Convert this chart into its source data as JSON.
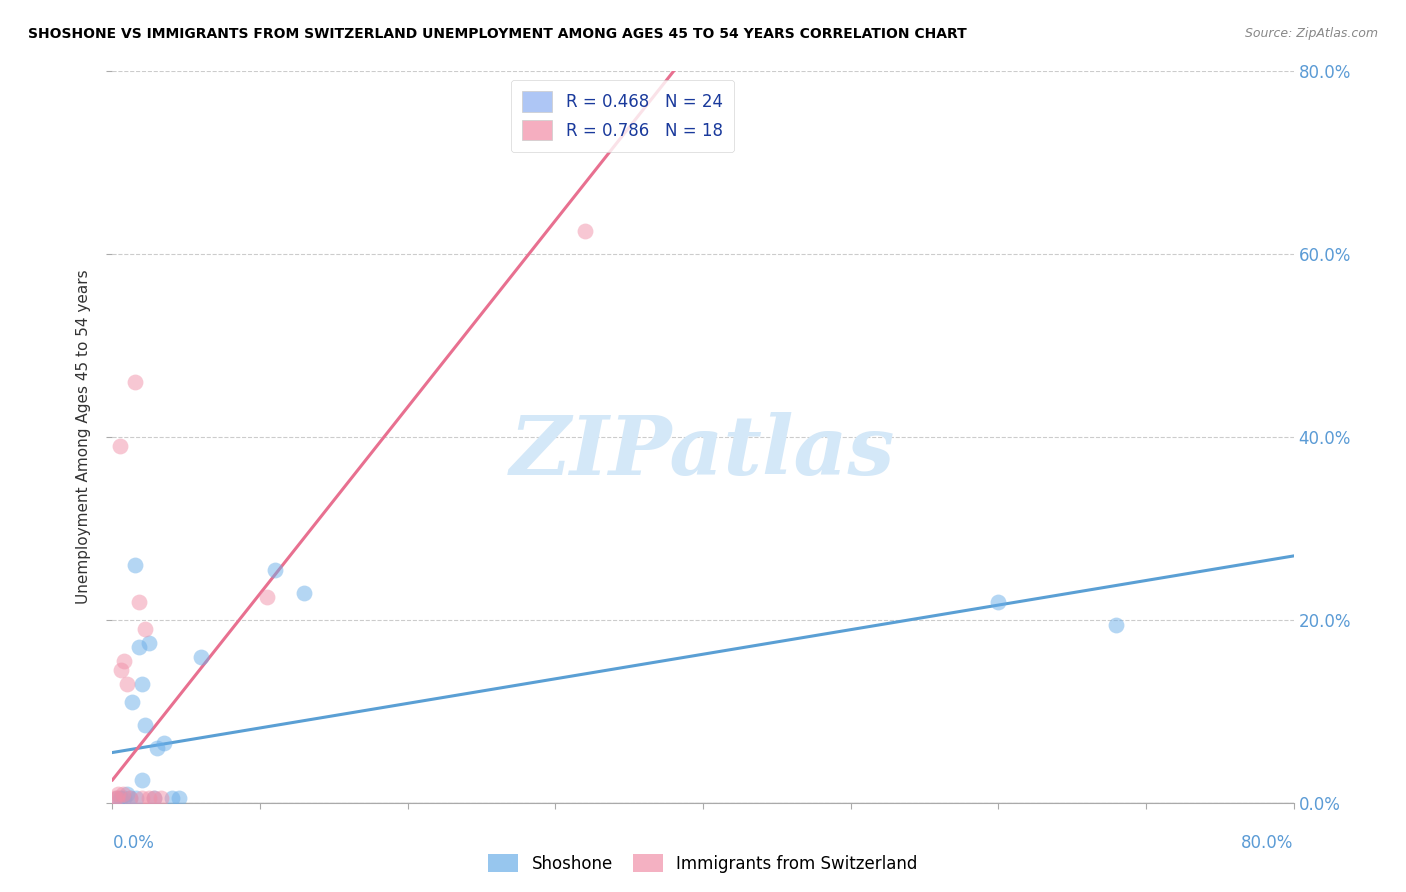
{
  "title": "SHOSHONE VS IMMIGRANTS FROM SWITZERLAND UNEMPLOYMENT AMONG AGES 45 TO 54 YEARS CORRELATION CHART",
  "source": "Source: ZipAtlas.com",
  "ylabel": "Unemployment Among Ages 45 to 54 years",
  "xlim": [
    0.0,
    0.8
  ],
  "ylim": [
    0.0,
    0.8
  ],
  "legend1_label": "R = 0.468   N = 24",
  "legend2_label": "R = 0.786   N = 18",
  "legend_color1": "#aec6f5",
  "legend_color2": "#f5aec0",
  "shoshone_color": "#6baee8",
  "swiss_color": "#f090a8",
  "trendline_shoshone_color": "#5a9fd4",
  "trendline_swiss_color": "#e87090",
  "watermark_text": "ZIPatlas",
  "watermark_color": "#d4e8f8",
  "legend_text_color": "#1a3a9c",
  "right_axis_color": "#5b9bd5",
  "shoshone_x": [
    0.003,
    0.005,
    0.006,
    0.008,
    0.01,
    0.012,
    0.013,
    0.015,
    0.016,
    0.018,
    0.02,
    0.022,
    0.025,
    0.028,
    0.03,
    0.035,
    0.04,
    0.045,
    0.06,
    0.11,
    0.13,
    0.6,
    0.68,
    0.02
  ],
  "shoshone_y": [
    0.005,
    0.005,
    0.005,
    0.005,
    0.01,
    0.005,
    0.11,
    0.26,
    0.005,
    0.17,
    0.13,
    0.085,
    0.175,
    0.005,
    0.06,
    0.065,
    0.005,
    0.005,
    0.16,
    0.255,
    0.23,
    0.22,
    0.195,
    0.025
  ],
  "swiss_x": [
    0.002,
    0.003,
    0.004,
    0.005,
    0.006,
    0.007,
    0.008,
    0.01,
    0.012,
    0.015,
    0.018,
    0.02,
    0.022,
    0.025,
    0.028,
    0.033,
    0.105,
    0.32
  ],
  "swiss_y": [
    0.005,
    0.005,
    0.01,
    0.39,
    0.145,
    0.01,
    0.155,
    0.13,
    0.005,
    0.46,
    0.22,
    0.005,
    0.19,
    0.005,
    0.005,
    0.005,
    0.225,
    0.625
  ],
  "shoshone_trend_x0": 0.0,
  "shoshone_trend_y0": 0.055,
  "shoshone_trend_x1": 0.8,
  "shoshone_trend_y1": 0.27,
  "swiss_trend_x0": 0.0,
  "swiss_trend_y0": 0.025,
  "swiss_trend_x1": 0.38,
  "swiss_trend_y1": 0.8,
  "marker_size": 130,
  "marker_alpha": 0.5,
  "ytick_values": [
    0.0,
    0.2,
    0.4,
    0.6,
    0.8
  ],
  "xtick_values": [
    0.0,
    0.1,
    0.2,
    0.3,
    0.4,
    0.5,
    0.6,
    0.7,
    0.8
  ]
}
